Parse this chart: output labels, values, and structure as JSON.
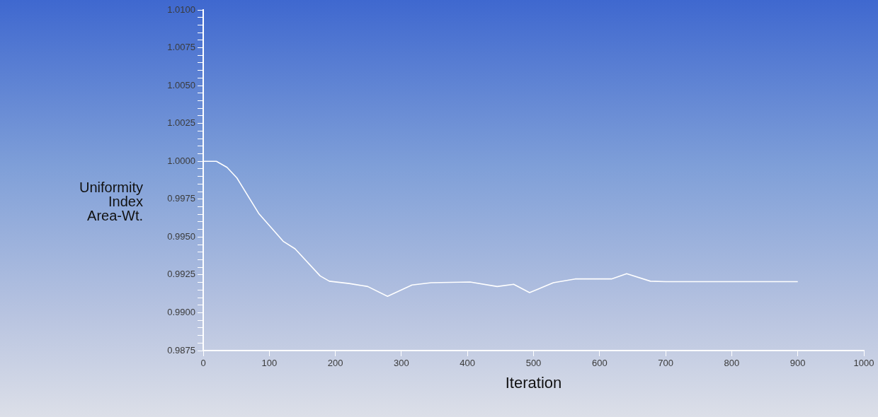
{
  "chart_data": {
    "type": "line",
    "xlabel": "Iteration",
    "ylabel": "Uniformity Index Area-Wt.",
    "series": [
      {
        "color": "#ffffff",
        "x": [
          0,
          20,
          36,
          51,
          84,
          121,
          139,
          177,
          191,
          221,
          249,
          279,
          316,
          345,
          404,
          445,
          470,
          494,
          530,
          563,
          618,
          641,
          677,
          700,
          800,
          900
        ],
        "values": [
          1.0,
          1.0,
          0.9996,
          0.9989,
          0.99656,
          0.99472,
          0.99422,
          0.99243,
          0.99208,
          0.99193,
          0.99173,
          0.99108,
          0.99183,
          0.99198,
          0.99203,
          0.99173,
          0.99188,
          0.99133,
          0.99198,
          0.99223,
          0.99223,
          0.99258,
          0.99208,
          0.99205,
          0.99205,
          0.99205
        ]
      }
    ],
    "xlim": [
      0,
      1000
    ],
    "xticks": [
      0,
      100,
      200,
      300,
      400,
      500,
      600,
      700,
      800,
      900,
      1000
    ],
    "ylim": [
      0.9875,
      1.01
    ],
    "yticks": [
      "0.9875",
      {
        "value": 0.988,
        "label": null
      },
      {
        "value": 0.9885,
        "label": null
      },
      {
        "value": 0.989,
        "label": null
      },
      {
        "value": 0.9895,
        "label": null
      },
      {
        "value": 0.99,
        "label": "0.9900"
      },
      {
        "value": 0.9905,
        "label": null
      },
      {
        "value": 0.991,
        "label": null
      },
      {
        "value": 0.9915,
        "label": null
      },
      {
        "value": 0.992,
        "label": null
      },
      {
        "value": 0.9925,
        "label": "0.9925"
      },
      {
        "value": 0.993,
        "label": null
      },
      {
        "value": 0.9935,
        "label": null
      },
      {
        "value": 0.994,
        "label": null
      },
      {
        "value": 0.9945,
        "label": null
      },
      {
        "value": 0.995,
        "label": "0.9950"
      },
      {
        "value": 0.9955,
        "label": null
      },
      {
        "value": 0.996,
        "label": null
      },
      {
        "value": 0.9965,
        "label": null
      },
      {
        "value": 0.997,
        "label": null
      },
      {
        "value": 0.9975,
        "label": "0.9975"
      },
      {
        "value": 0.998,
        "label": null
      },
      {
        "value": 0.9985,
        "label": null
      },
      {
        "value": 0.999,
        "label": null
      },
      {
        "value": 0.9995,
        "label": null
      },
      {
        "value": 1.0,
        "label": "1.0000"
      },
      {
        "value": 1.0005,
        "label": null
      },
      {
        "value": 1.001,
        "label": null
      },
      {
        "value": 1.0015,
        "label": null
      },
      {
        "value": 1.002,
        "label": null
      },
      {
        "value": 1.0025,
        "label": "1.0025"
      },
      {
        "value": 1.003,
        "label": null
      },
      {
        "value": 1.0035,
        "label": null
      },
      {
        "value": 1.004,
        "label": null
      },
      {
        "value": 1.0045,
        "label": null
      },
      {
        "value": 1.005,
        "label": "1.0050"
      },
      {
        "value": 1.0055,
        "label": null
      },
      {
        "value": 1.006,
        "label": null
      },
      {
        "value": 1.0065,
        "label": null
      },
      {
        "value": 1.007,
        "label": null
      },
      {
        "value": 1.0075,
        "label": "1.0075"
      },
      {
        "value": 1.008,
        "label": null
      },
      {
        "value": 1.0085,
        "label": null
      },
      {
        "value": 1.009,
        "label": null
      },
      {
        "value": 1.0095,
        "label": null
      },
      {
        "value": 1.01,
        "label": "1.0100"
      }
    ],
    "grid": false,
    "legend": false,
    "marker": "none",
    "line_style": "solid"
  }
}
